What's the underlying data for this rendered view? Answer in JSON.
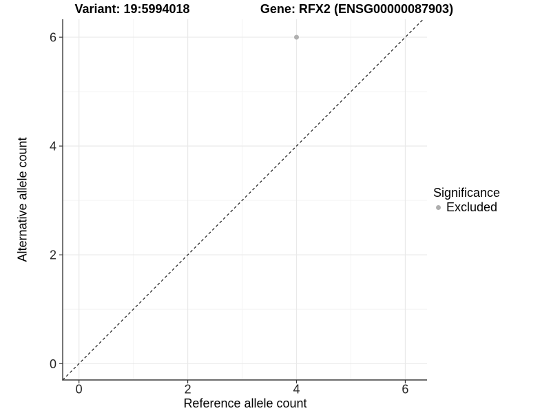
{
  "chart_data": {
    "type": "scatter",
    "titles": {
      "left": "Variant: 19:5994018",
      "right": "Gene: RFX2 (ENSG00000087903)"
    },
    "xlabel": "Reference allele count",
    "ylabel": "Alternative allele count",
    "xlim": [
      -0.3,
      6.4
    ],
    "ylim": [
      -0.3,
      6.33
    ],
    "xticks": [
      0,
      2,
      4,
      6
    ],
    "yticks": [
      0,
      2,
      4,
      6
    ],
    "minor_xticks": [
      1,
      3,
      5
    ],
    "minor_yticks": [
      1,
      3,
      5
    ],
    "grid": "major+minor",
    "points": [
      {
        "x": 4,
        "y": 6,
        "series": "Excluded"
      }
    ],
    "reference_line": {
      "kind": "identity",
      "slope": 1,
      "intercept": 0,
      "style": "dashed"
    },
    "legend": {
      "position": "right",
      "title": "Significance",
      "items": [
        {
          "label": "Excluded",
          "marker": "circle",
          "color": "#aeaeae"
        }
      ]
    },
    "colors": {
      "background": "#ffffff",
      "grid_major": "#e9e9e9",
      "grid_minor": "#f4f4f4",
      "axis_line": "#3c3c3c",
      "tick_mark": "#333333",
      "tick_label": "#262626",
      "point": "#b0b0b0",
      "identity_line": "#1a1a1a",
      "text": "#000000"
    }
  }
}
